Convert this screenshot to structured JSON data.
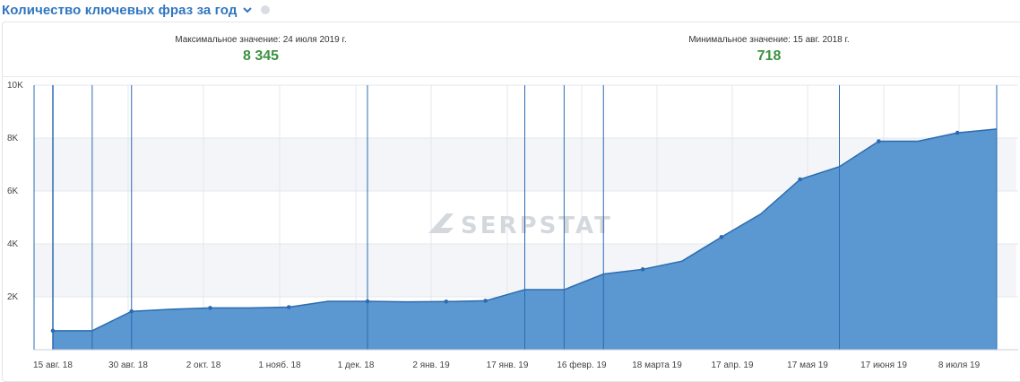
{
  "header": {
    "title": "Количество ключевых фраз за год",
    "chevron_icon": "chevron-down-icon",
    "info_icon": "info-icon"
  },
  "stats": {
    "max_label": "Максимальное значение: 24 июля 2019 г.",
    "max_value": "8 345",
    "min_label": "Минимальное значение: 15 авг. 2018 г.",
    "min_value": "718"
  },
  "watermark": "SERPSTAT",
  "colors": {
    "accent": "#2f76c1",
    "area_fill": "#5b97d1",
    "line": "#2b6cb0",
    "value_green": "#3c9141",
    "marker_line": "#2b6cb0"
  },
  "chart_data": {
    "type": "area",
    "title": "Количество ключевых фраз за год",
    "y_ticks": [
      "2K",
      "4K",
      "6K",
      "8K",
      "10K"
    ],
    "y_tick_values": [
      2000,
      4000,
      6000,
      8000,
      10000
    ],
    "ylim": [
      0,
      10000
    ],
    "x_tick_labels": [
      "15 авг. 18",
      "30 авг. 18",
      "2 окт. 18",
      "1 нояб. 18",
      "1 дек. 18",
      "2 янв. 19",
      "17 янв. 19",
      "16 февр. 19",
      "18 марта 19",
      "17 апр. 19",
      "17 мая 19",
      "17 июня 19",
      "8 июля 19"
    ],
    "grid": true,
    "series": [
      {
        "values": [
          718,
          718,
          1450,
          1530,
          1580,
          1580,
          1610,
          1830,
          1830,
          1810,
          1820,
          1850,
          2270,
          2270,
          2860,
          3040,
          3350,
          4260,
          5130,
          6440,
          6920,
          7880,
          7880,
          8200,
          8345
        ],
        "markers": [
          true,
          false,
          true,
          false,
          true,
          false,
          true,
          false,
          true,
          false,
          true,
          true,
          false,
          false,
          false,
          true,
          false,
          true,
          false,
          true,
          false,
          true,
          false,
          true,
          false
        ]
      }
    ],
    "vertical_markers": [
      1,
      2,
      8,
      12,
      13,
      14,
      20,
      24
    ]
  }
}
